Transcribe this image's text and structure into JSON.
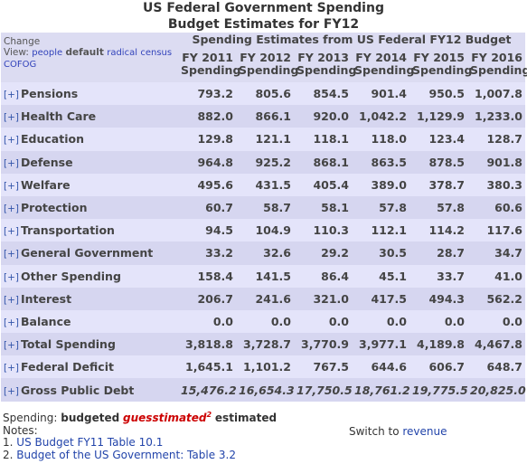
{
  "header": {
    "title": "US Federal Government Spending",
    "subtitle": "Budget Estimates for FY12"
  },
  "table": {
    "group_header": "Spending Estimates from US Federal FY12 Budget",
    "change": "Change",
    "view_label": "View:",
    "views": [
      "people",
      "default",
      "radical",
      "census",
      "COFOG"
    ],
    "columns": [
      {
        "year": "FY 2011",
        "label": "Spending"
      },
      {
        "year": "FY 2012",
        "label": "Spending"
      },
      {
        "year": "FY 2013",
        "label": "Spending"
      },
      {
        "year": "FY 2014",
        "label": "Spending"
      },
      {
        "year": "FY 2015",
        "label": "Spending"
      },
      {
        "year": "FY 2016",
        "label": "Spending"
      }
    ],
    "expander": "[+]",
    "rows": [
      {
        "label": "Pensions",
        "values": [
          "793.2",
          "805.6",
          "854.5",
          "901.4",
          "950.5",
          "1,007.8"
        ]
      },
      {
        "label": "Health Care",
        "values": [
          "882.0",
          "866.1",
          "920.0",
          "1,042.2",
          "1,129.9",
          "1,233.0"
        ]
      },
      {
        "label": "Education",
        "values": [
          "129.8",
          "121.1",
          "118.1",
          "118.0",
          "123.4",
          "128.7"
        ]
      },
      {
        "label": "Defense",
        "values": [
          "964.8",
          "925.2",
          "868.1",
          "863.5",
          "878.5",
          "901.8"
        ]
      },
      {
        "label": "Welfare",
        "values": [
          "495.6",
          "431.5",
          "405.4",
          "389.0",
          "378.7",
          "380.3"
        ]
      },
      {
        "label": "Protection",
        "values": [
          "60.7",
          "58.7",
          "58.1",
          "57.8",
          "57.8",
          "60.6"
        ]
      },
      {
        "label": "Transportation",
        "values": [
          "94.5",
          "104.9",
          "110.3",
          "112.1",
          "114.2",
          "117.6"
        ]
      },
      {
        "label": "General Government",
        "values": [
          "33.2",
          "32.6",
          "29.2",
          "30.5",
          "28.7",
          "34.7"
        ]
      },
      {
        "label": "Other Spending",
        "values": [
          "158.4",
          "141.5",
          "86.4",
          "45.1",
          "33.7",
          "41.0"
        ]
      },
      {
        "label": "Interest",
        "values": [
          "206.7",
          "241.6",
          "321.0",
          "417.5",
          "494.3",
          "562.2"
        ]
      },
      {
        "label": "Balance",
        "values": [
          "0.0",
          "0.0",
          "0.0",
          "0.0",
          "0.0",
          "0.0"
        ]
      },
      {
        "label": "Total Spending",
        "values": [
          "3,818.8",
          "3,728.7",
          "3,770.9",
          "3,977.1",
          "4,189.8",
          "4,467.8"
        ]
      },
      {
        "label": "Federal Deficit",
        "values": [
          "1,645.1",
          "1,101.2",
          "767.5",
          "644.6",
          "606.7",
          "648.7"
        ]
      },
      {
        "label": "Gross Public Debt",
        "values": [
          "15,476.2",
          "16,654.3",
          "17,750.5",
          "18,761.2",
          "19,775.5",
          "20,825.0"
        ]
      }
    ]
  },
  "footer": {
    "spending_label": "Spending:",
    "budgeted": "budgeted",
    "guesstimated": "guesstimated",
    "note_mark": "2",
    "estimated": "estimated",
    "notes_label": "Notes:",
    "notes": [
      {
        "num": "1.",
        "text": "US Budget FY11 Table 10.1"
      },
      {
        "num": "2.",
        "text": "Budget of the US Government: Table 3.2"
      }
    ],
    "switch_label": "Switch to",
    "switch_link": "revenue"
  }
}
